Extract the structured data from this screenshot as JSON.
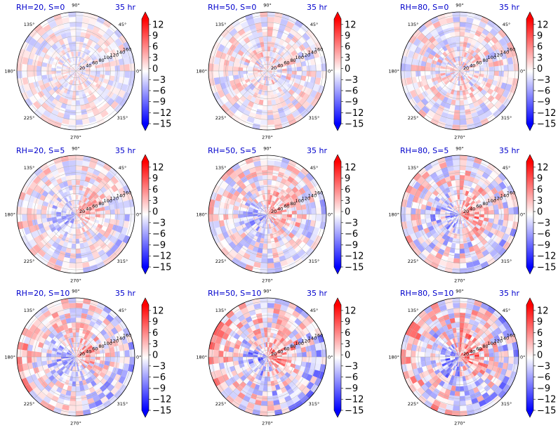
{
  "figure": {
    "time_label": "35 hr"
  },
  "chart_data": {
    "type": "heatmap",
    "projection": "polar",
    "angular_ticks": [
      "0°",
      "45°",
      "90°",
      "135°",
      "180°",
      "225°",
      "270°",
      "315°"
    ],
    "radial_ticks": [
      "20",
      "40",
      "60",
      "80",
      "100",
      "120",
      "140",
      "160"
    ],
    "radial_range": [
      0,
      170
    ],
    "colorbar": {
      "ticks": [
        "12",
        "9",
        "6",
        "3",
        "0",
        "−3",
        "−6",
        "−9",
        "−12",
        "−15"
      ],
      "range": [
        -15,
        13.5
      ],
      "colormap": "bwr",
      "extend": "both",
      "colors": {
        "negative": "#0000ff",
        "zero": "#ffffff",
        "positive": "#ff0000"
      }
    },
    "panels": [
      {
        "title": "RH=20, S=0",
        "rh": 20,
        "s": 0
      },
      {
        "title": "RH=50, S=0",
        "rh": 50,
        "s": 0
      },
      {
        "title": "RH=80, S=0",
        "rh": 80,
        "s": 0
      },
      {
        "title": "RH=20, S=5",
        "rh": 20,
        "s": 5
      },
      {
        "title": "RH=50, S=5",
        "rh": 50,
        "s": 5
      },
      {
        "title": "RH=80, S=5",
        "rh": 80,
        "s": 5
      },
      {
        "title": "RH=20, S=10",
        "rh": 20,
        "s": 10
      },
      {
        "title": "RH=50, S=10",
        "rh": 50,
        "s": 10
      },
      {
        "title": "RH=80, S=10",
        "rh": 80,
        "s": 10
      }
    ]
  }
}
